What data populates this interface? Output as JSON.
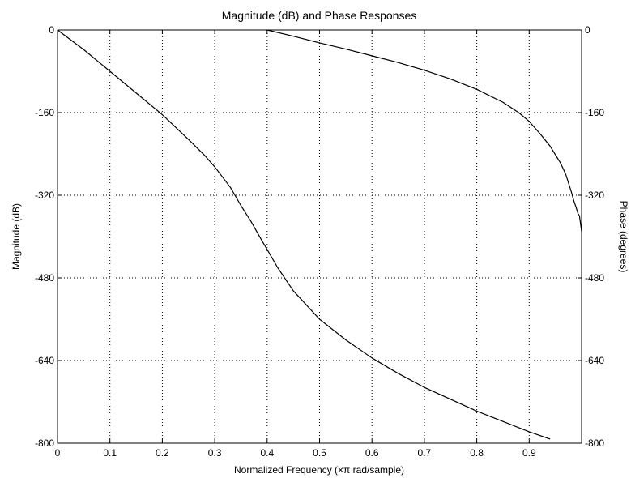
{
  "chart_data": {
    "type": "line",
    "title": "Magnitude (dB) and Phase Responses",
    "xlabel": "Normalized Frequency (×π rad/sample)",
    "ylabel_left": "Magnitude (dB)",
    "ylabel_right": "Phase (degrees)",
    "xlim": [
      0,
      1
    ],
    "ylim_left": [
      -800,
      0
    ],
    "ylim_right": [
      -800,
      0
    ],
    "grid": true,
    "x_ticks": [
      "0",
      "0.1",
      "0.2",
      "0.3",
      "0.4",
      "0.5",
      "0.6",
      "0.7",
      "0.8",
      "0.9"
    ],
    "y_ticks_left": [
      "0",
      "-160",
      "-320",
      "-480",
      "-640",
      "-800"
    ],
    "y_ticks_right": [
      "0",
      "-160",
      "-320",
      "-480",
      "-640",
      "-800"
    ],
    "series": [
      {
        "axis": "left",
        "color": "#000000",
        "x": [
          0,
          0.05,
          0.1,
          0.15,
          0.2,
          0.25,
          0.28,
          0.3,
          0.33,
          0.35,
          0.37,
          0.39,
          0.4,
          0.42,
          0.45,
          0.5,
          0.55,
          0.6,
          0.65,
          0.7,
          0.75,
          0.8,
          0.85,
          0.9,
          0.94
        ],
        "y": [
          0,
          -38,
          -80,
          -122,
          -164,
          -212,
          -242,
          -265,
          -305,
          -340,
          -372,
          -408,
          -425,
          -460,
          -505,
          -560,
          -600,
          -635,
          -665,
          -692,
          -715,
          -738,
          -758,
          -778,
          -792
        ]
      },
      {
        "axis": "right",
        "color": "#000000",
        "x": [
          0.4,
          0.45,
          0.5,
          0.55,
          0.6,
          0.65,
          0.7,
          0.75,
          0.8,
          0.85,
          0.88,
          0.9,
          0.92,
          0.94,
          0.96,
          0.97,
          0.98,
          0.985,
          0.99,
          0.993,
          0.996,
          1.0
        ],
        "y": [
          0,
          -12,
          -25,
          -37,
          -50,
          -63,
          -78,
          -95,
          -115,
          -140,
          -160,
          -177,
          -200,
          -225,
          -258,
          -280,
          -312,
          -330,
          -345,
          -355,
          -360,
          -390
        ]
      }
    ]
  }
}
